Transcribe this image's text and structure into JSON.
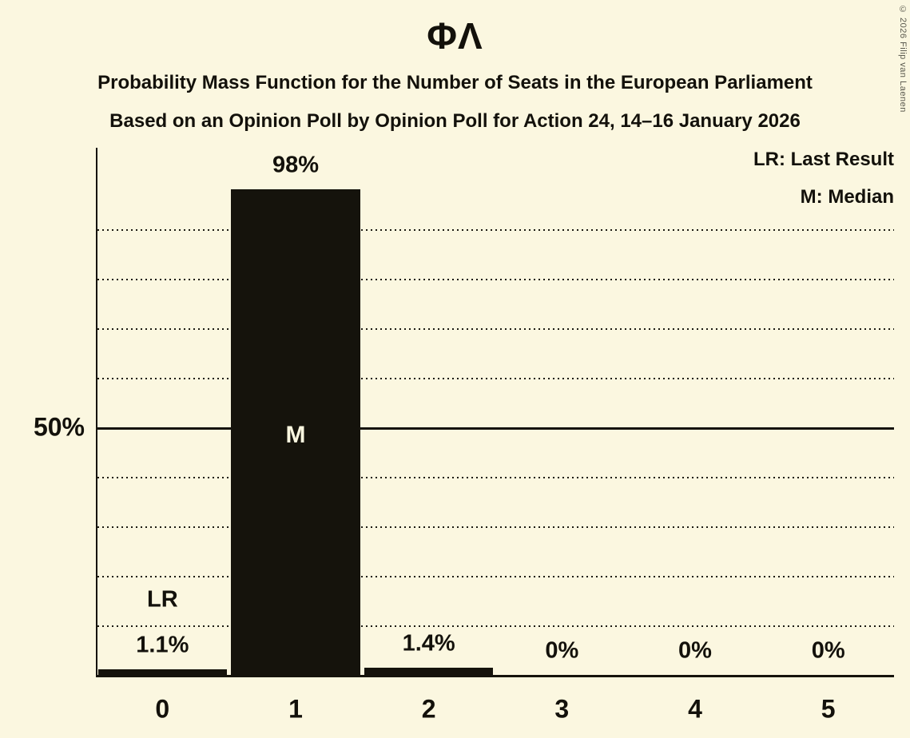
{
  "title": "ΦΛ",
  "subtitle1": "Probability Mass Function for the Number of Seats in the European Parliament",
  "subtitle2": "Based on an Opinion Poll by Opinion Poll for Action 24, 14–16 January 2026",
  "copyright": "© 2026 Filip van Laenen",
  "legend": {
    "lr": "LR: Last Result",
    "m": "M: Median"
  },
  "colors": {
    "background": "#fbf7e0",
    "bar": "#15130c",
    "text": "#13110b",
    "copyright_text": "#5a594e"
  },
  "chart_data": {
    "type": "bar",
    "title": "ΦΛ — Probability Mass Function for the Number of Seats in the European Parliament",
    "categories": [
      "0",
      "1",
      "2",
      "3",
      "4",
      "5"
    ],
    "values": [
      1.1,
      98,
      1.4,
      0,
      0,
      0
    ],
    "value_labels": [
      "1.1%",
      "98%",
      "1.4%",
      "0%",
      "0%",
      "0%"
    ],
    "yticks": [
      {
        "value": 50,
        "label": "50%"
      }
    ],
    "ylim": [
      0,
      106.5
    ],
    "gridline_step_percent": 10,
    "grid_solid_at_percent": 50,
    "legend_position": "top-right",
    "annotations": [
      {
        "text": "LR",
        "seat_index": 0,
        "meaning": "Last Result"
      },
      {
        "text": "M",
        "seat_index": 1,
        "meaning": "Median",
        "at_percent": 50
      }
    ]
  }
}
